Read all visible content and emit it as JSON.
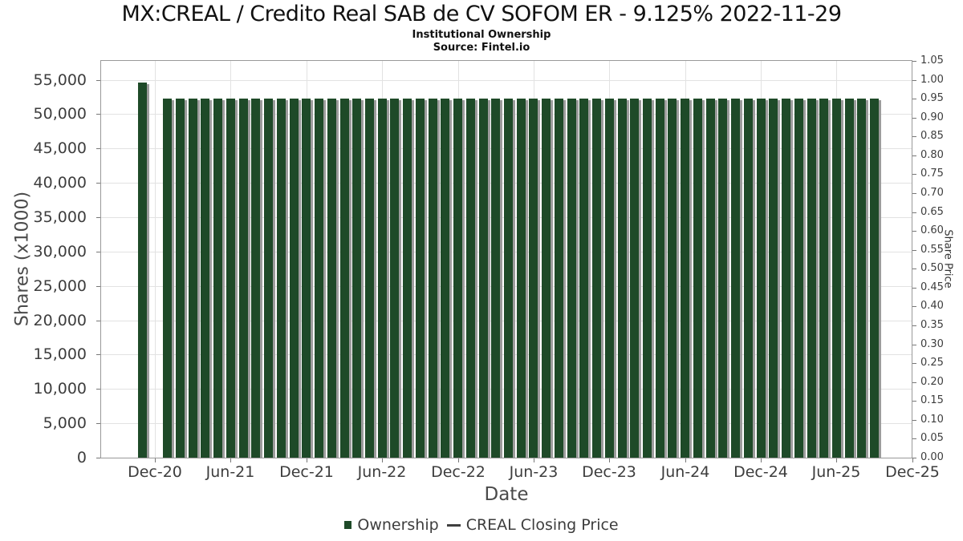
{
  "header": {
    "title": "MX:CREAL / Credito Real SAB de CV SOFOM ER - 9.125% 2022-11-29",
    "subtitle": "Institutional Ownership",
    "source": "Source: Fintel.io"
  },
  "chart_data": {
    "type": "bar",
    "title": "MX:CREAL / Credito Real SAB de CV SOFOM ER - 9.125% 2022-11-29",
    "subtitle": "Institutional Ownership",
    "source": "Source: Fintel.io",
    "xlabel": "Date",
    "ylabel_left": "Shares (x1000)",
    "ylabel_right": "Share Price",
    "grid": true,
    "legend_position": "bottom",
    "x_ticks": [
      "Dec-20",
      "Jun-21",
      "Dec-21",
      "Jun-22",
      "Dec-22",
      "Jun-23",
      "Dec-23",
      "Jun-24",
      "Dec-24",
      "Jun-25",
      "Dec-25"
    ],
    "y_left_ticks": [
      0,
      5000,
      10000,
      15000,
      20000,
      25000,
      30000,
      35000,
      40000,
      45000,
      50000,
      55000
    ],
    "y_left_max": 57750,
    "y_right_ticks": [
      0.0,
      0.05,
      0.1,
      0.15,
      0.2,
      0.25,
      0.3,
      0.35,
      0.4,
      0.45,
      0.5,
      0.55,
      0.6,
      0.65,
      0.7,
      0.75,
      0.8,
      0.85,
      0.9,
      0.95,
      1.0,
      1.05
    ],
    "y_right_max": 1.05,
    "x": [
      "Nov-20",
      "Jan-21",
      "Feb-21",
      "Mar-21",
      "Apr-21",
      "May-21",
      "Jun-21",
      "Jul-21",
      "Aug-21",
      "Sep-21",
      "Oct-21",
      "Nov-21",
      "Dec-21",
      "Jan-22",
      "Feb-22",
      "Mar-22",
      "Apr-22",
      "May-22",
      "Jun-22",
      "Jul-22",
      "Aug-22",
      "Sep-22",
      "Oct-22",
      "Nov-22",
      "Dec-22",
      "Jan-23",
      "Feb-23",
      "Mar-23",
      "Apr-23",
      "May-23",
      "Jun-23",
      "Jul-23",
      "Aug-23",
      "Sep-23",
      "Oct-23",
      "Nov-23",
      "Dec-23",
      "Jan-24",
      "Feb-24",
      "Mar-24",
      "Apr-24",
      "May-24",
      "Jun-24",
      "Jul-24",
      "Aug-24",
      "Sep-24",
      "Oct-24",
      "Nov-24",
      "Dec-24",
      "Jan-25",
      "Feb-25",
      "Mar-25",
      "Apr-25",
      "May-25",
      "Jun-25",
      "Jul-25",
      "Aug-25",
      "Sep-25"
    ],
    "series": [
      {
        "name": "Ownership",
        "type": "bar",
        "color": "#1e4a28",
        "values": [
          54650,
          52300,
          52300,
          52300,
          52300,
          52300,
          52300,
          52300,
          52300,
          52300,
          52300,
          52300,
          52300,
          52300,
          52300,
          52300,
          52300,
          52300,
          52300,
          52300,
          52300,
          52300,
          52300,
          52300,
          52300,
          52300,
          52300,
          52300,
          52300,
          52300,
          52300,
          52300,
          52300,
          52300,
          52300,
          52300,
          52300,
          52300,
          52300,
          52300,
          52300,
          52300,
          52300,
          52300,
          52300,
          52300,
          52300,
          52300,
          52300,
          52300,
          52300,
          52300,
          52300,
          52300,
          52300,
          52300,
          52300,
          52300
        ]
      },
      {
        "name": "CREAL Closing Price",
        "type": "line",
        "color": "#3f3f3f",
        "values": []
      }
    ]
  }
}
